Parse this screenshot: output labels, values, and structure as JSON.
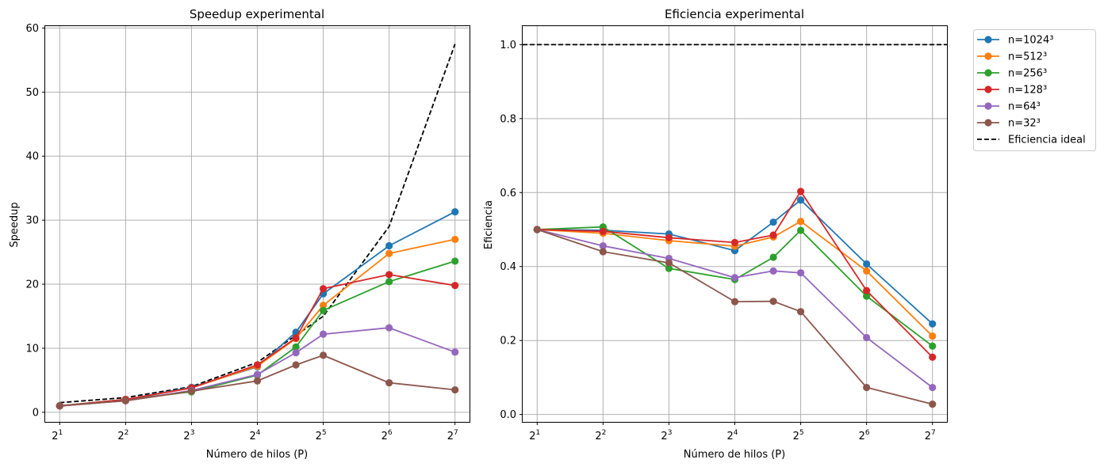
{
  "figure": {
    "panels": [
      "speedup",
      "efficiency"
    ]
  },
  "chart_data": [
    {
      "id": "speedup",
      "type": "line",
      "title": "Speedup experimental",
      "xlabel": "Número de hilos (P)",
      "ylabel": "Speedup",
      "x_scale": "log2",
      "x_ticks": [
        2,
        4,
        8,
        16,
        32,
        64,
        128
      ],
      "x_tick_labels": [
        "2",
        "2",
        "2",
        "2",
        "2",
        "2",
        "2"
      ],
      "x_tick_exponents": [
        "1",
        "2",
        "3",
        "4",
        "5",
        "6",
        "7"
      ],
      "ylim": [
        -1.5,
        60.3
      ],
      "y_ticks": [
        0,
        10,
        20,
        30,
        40,
        50,
        60
      ],
      "y_tick_labels": [
        "0",
        "10",
        "20",
        "30",
        "40",
        "50",
        "60"
      ],
      "grid": true,
      "x": [
        2,
        4,
        8,
        16,
        24,
        32,
        64,
        128
      ],
      "series": [
        {
          "name": "n=1024³",
          "color": "#1f77b4",
          "values": [
            1.0,
            2.0,
            3.9,
            7.1,
            12.5,
            18.5,
            26.0,
            31.3
          ]
        },
        {
          "name": "n=512³",
          "color": "#ff7f0e",
          "values": [
            1.0,
            2.0,
            3.8,
            7.2,
            11.5,
            16.7,
            24.8,
            27.0
          ]
        },
        {
          "name": "n=256³",
          "color": "#2ca02c",
          "values": [
            1.0,
            2.0,
            3.2,
            5.8,
            10.2,
            15.9,
            20.4,
            23.6
          ]
        },
        {
          "name": "n=128³",
          "color": "#d62728",
          "values": [
            1.0,
            2.0,
            3.8,
            7.4,
            11.6,
            19.3,
            21.5,
            19.8
          ]
        },
        {
          "name": "n=64³",
          "color": "#9467bd",
          "values": [
            1.0,
            1.8,
            3.4,
            5.9,
            9.3,
            12.2,
            13.2,
            9.4
          ]
        },
        {
          "name": "n=32³",
          "color": "#8c564b",
          "values": [
            1.0,
            1.8,
            3.3,
            4.9,
            7.4,
            8.9,
            4.6,
            3.5
          ]
        }
      ],
      "ideal": {
        "name": "",
        "color": "#000000",
        "style": "dashed",
        "x": [
          2,
          4,
          8,
          16,
          32,
          64,
          128
        ],
        "values": [
          1.5,
          2.3,
          4.0,
          7.8,
          15.0,
          29.0,
          57.5
        ]
      }
    },
    {
      "id": "efficiency",
      "type": "line",
      "title": "Eficiencia experimental",
      "xlabel": "Número de hilos (P)",
      "ylabel": "Eficiencia",
      "x_scale": "log2",
      "x_ticks": [
        2,
        4,
        8,
        16,
        32,
        64,
        128
      ],
      "x_tick_labels": [
        "2",
        "2",
        "2",
        "2",
        "2",
        "2",
        "2"
      ],
      "x_tick_exponents": [
        "1",
        "2",
        "3",
        "4",
        "5",
        "6",
        "7"
      ],
      "ylim": [
        -0.02,
        1.05
      ],
      "y_ticks": [
        0.0,
        0.2,
        0.4,
        0.6,
        0.8,
        1.0
      ],
      "y_tick_labels": [
        "0.0",
        "0.2",
        "0.4",
        "0.6",
        "0.8",
        "1.0"
      ],
      "grid": true,
      "x": [
        2,
        4,
        8,
        16,
        24,
        32,
        64,
        128
      ],
      "series": [
        {
          "name": "n=1024³",
          "color": "#1f77b4",
          "values": [
            0.5,
            0.498,
            0.488,
            0.443,
            0.52,
            0.58,
            0.407,
            0.245
          ]
        },
        {
          "name": "n=512³",
          "color": "#ff7f0e",
          "values": [
            0.5,
            0.49,
            0.47,
            0.455,
            0.48,
            0.522,
            0.388,
            0.212
          ]
        },
        {
          "name": "n=256³",
          "color": "#2ca02c",
          "values": [
            0.5,
            0.507,
            0.395,
            0.365,
            0.425,
            0.498,
            0.32,
            0.185
          ]
        },
        {
          "name": "n=128³",
          "color": "#d62728",
          "values": [
            0.5,
            0.495,
            0.478,
            0.465,
            0.485,
            0.603,
            0.335,
            0.155
          ]
        },
        {
          "name": "n=64³",
          "color": "#9467bd",
          "values": [
            0.5,
            0.456,
            0.422,
            0.37,
            0.388,
            0.383,
            0.208,
            0.073
          ]
        },
        {
          "name": "n=32³",
          "color": "#8c564b",
          "values": [
            0.5,
            0.44,
            0.41,
            0.305,
            0.306,
            0.278,
            0.073,
            0.028
          ]
        }
      ],
      "ideal": {
        "name": "Eficiencia ideal",
        "color": "#000000",
        "style": "dashed",
        "value": 1.0
      },
      "legend": {
        "placement": "outside-right",
        "entries": [
          "n=1024³",
          "n=512³",
          "n=256³",
          "n=128³",
          "n=64³",
          "n=32³",
          "Eficiencia ideal"
        ]
      }
    }
  ]
}
